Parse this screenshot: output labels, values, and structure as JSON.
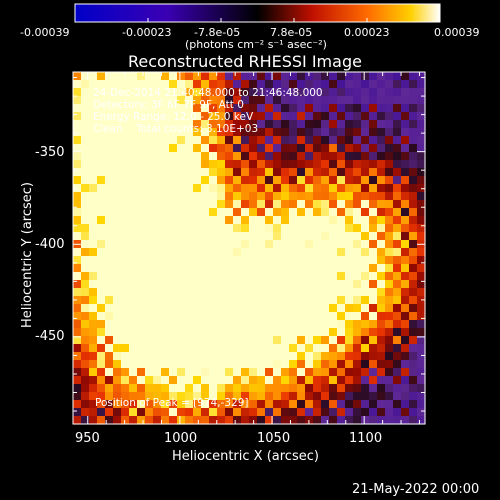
{
  "chart_data": {
    "type": "heatmap",
    "title": "Reconstructed RHESSI Image",
    "xlabel": "Heliocentric X (arcsec)",
    "ylabel": "Heliocentric Y (arcsec)",
    "xlim": [
      942,
      1133
    ],
    "ylim": [
      -497,
      -307
    ],
    "x_ticks": [
      "950",
      "1000",
      "1050",
      "1100"
    ],
    "y_ticks": [
      "-350",
      "-400",
      "-450"
    ],
    "x_tick_values": [
      950,
      1000,
      1050,
      1100
    ],
    "y_tick_values": [
      -350,
      -400,
      -450
    ],
    "colorbar": {
      "ticks": [
        "-0.00039",
        "-0.00023",
        "-7.8e-05",
        "7.8e-05",
        "0.00023",
        "0.00039"
      ],
      "unit": "(photons cm⁻² s⁻¹ asec⁻²)",
      "range": [
        -0.00039,
        0.00039
      ]
    },
    "sources": [
      {
        "x": 974,
        "y": -329,
        "intensity": 1.0
      },
      {
        "x": 985,
        "y": -405,
        "intensity": 0.75
      },
      {
        "x": 1010,
        "y": -450,
        "intensity": 0.8
      },
      {
        "x": 1090,
        "y": -400,
        "intensity": 0.85
      },
      {
        "x": 1062,
        "y": -440,
        "intensity": 0.55
      }
    ],
    "annotations": {
      "line1": "24-Dec-2014 21:40:48.000 to 21:46:48.000",
      "line2": "Detectors: 3F 6F 7F 9F, Att 0",
      "line3": "Energy Range: 12.0 - 25.0 keV",
      "line4": "Clean    Total counts: 3.10E+03",
      "peak": "Position of Peak = [974,-329]"
    }
  },
  "footer": {
    "date": "21-May-2022 00:00"
  }
}
